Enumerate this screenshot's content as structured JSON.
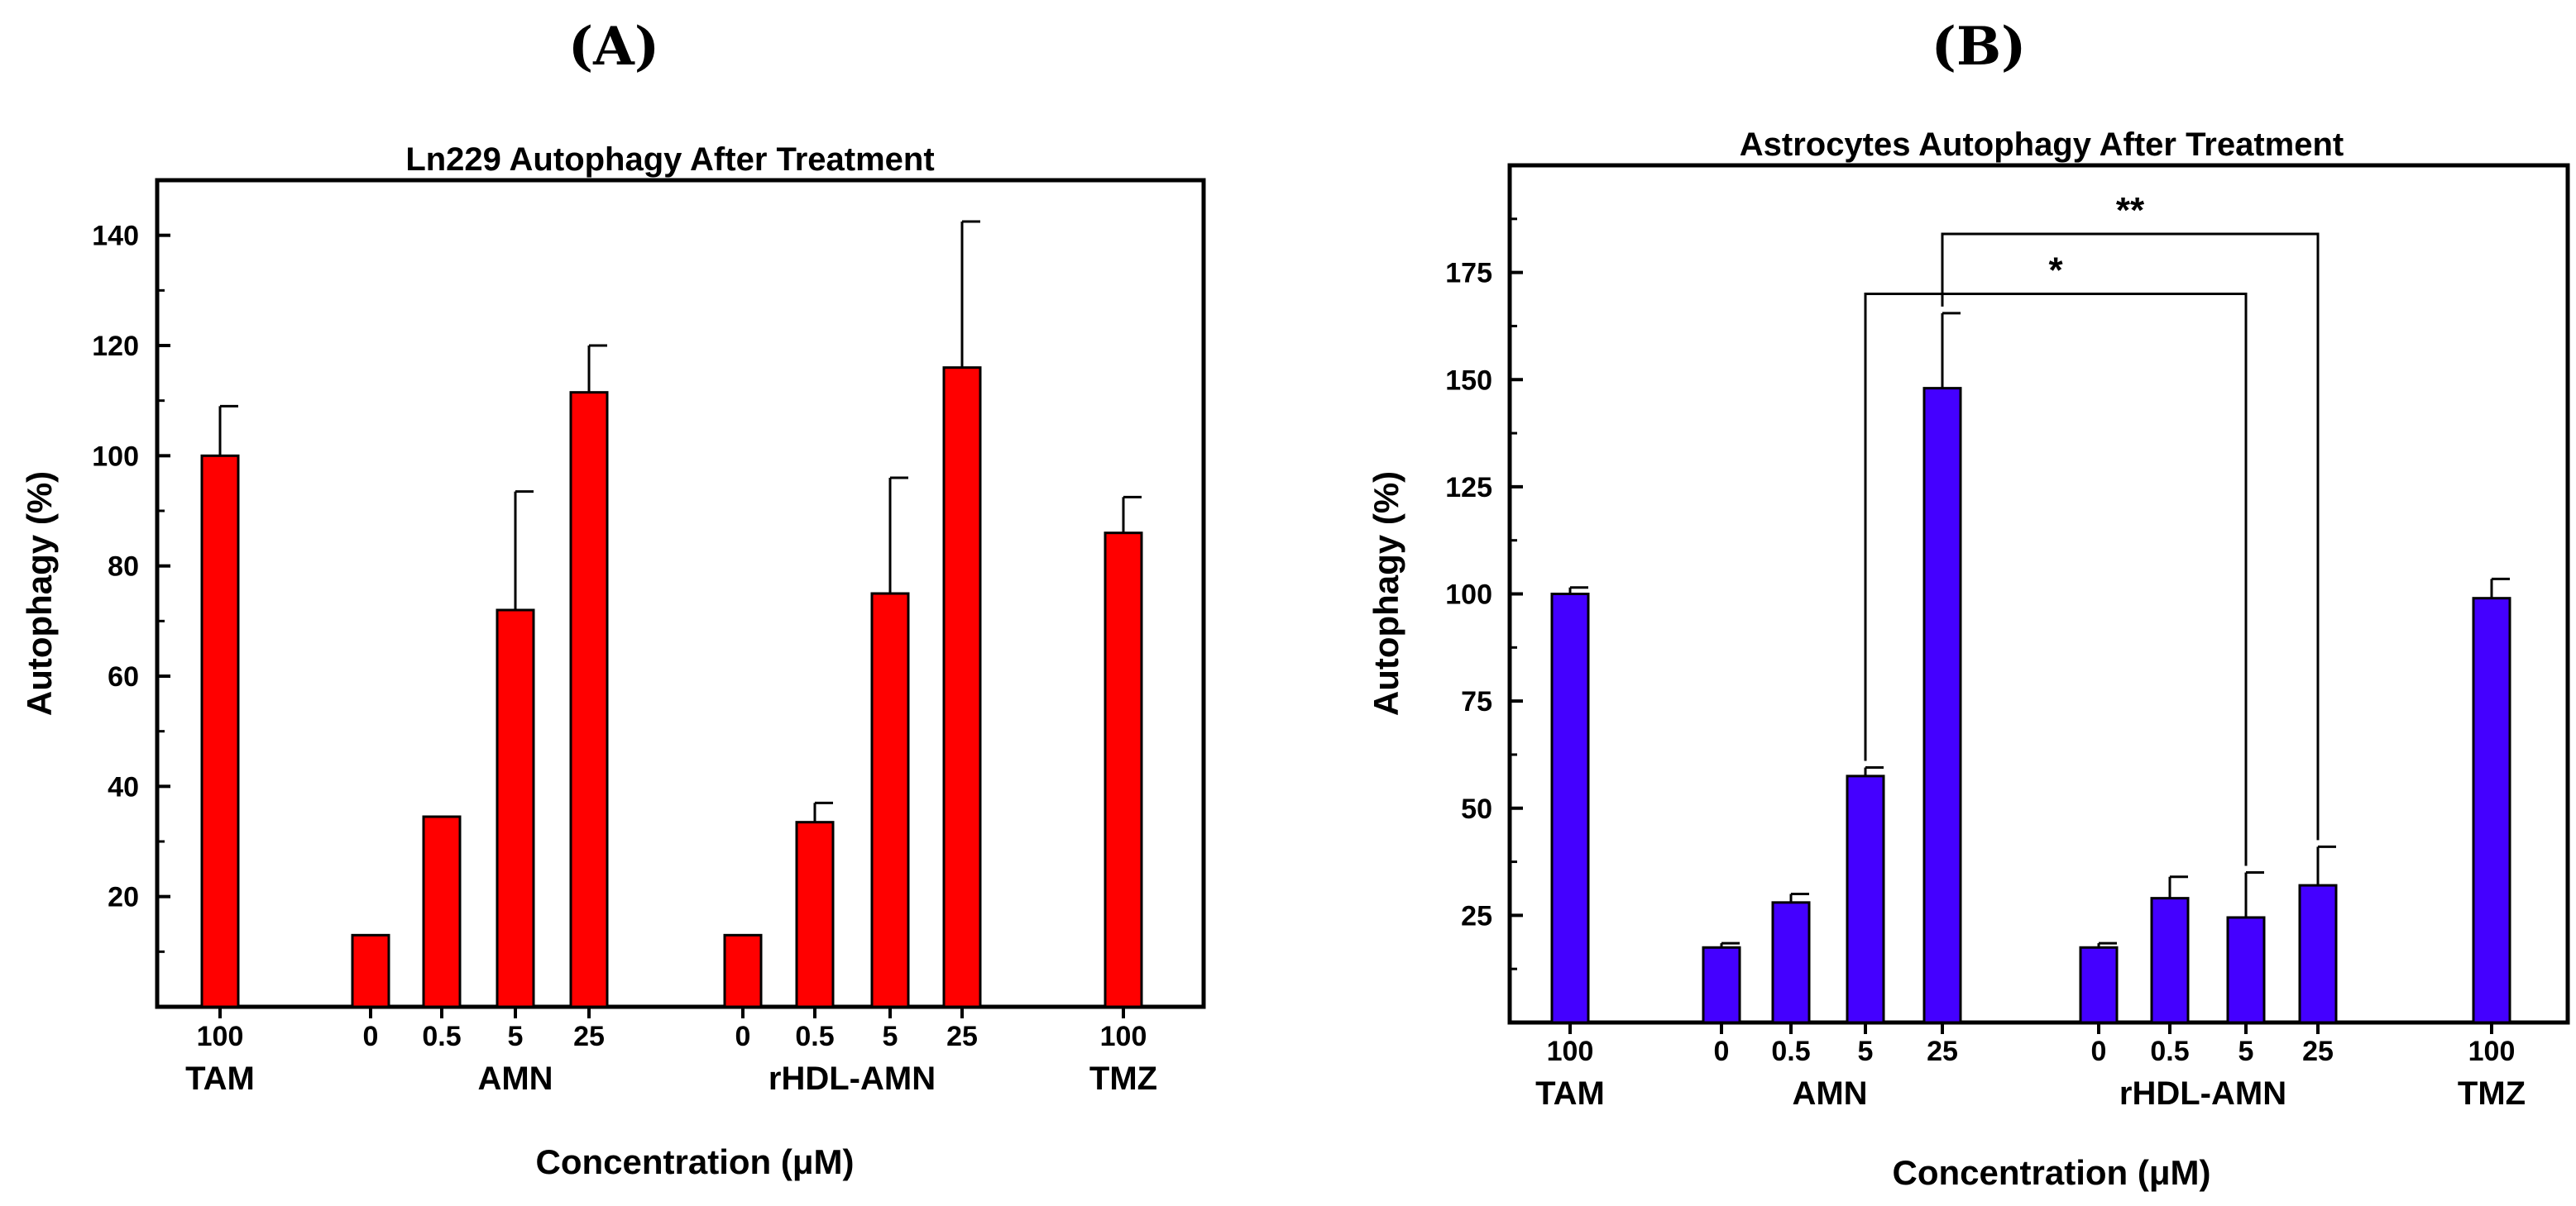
{
  "chart_data": [
    {
      "panel": "(A)",
      "type": "bar",
      "title": "Ln229 Autophagy After Treatment",
      "xlabel": "Concentration (μM)",
      "ylabel": "Autophagy (%)",
      "ylim": [
        0,
        150
      ],
      "yticks": [
        20,
        40,
        60,
        80,
        100,
        120,
        140
      ],
      "grid": false,
      "legend": "none",
      "bar_color": "#ff0000",
      "bars": [
        {
          "group": "TAM",
          "label": "100",
          "value": 100,
          "error": 9
        },
        {
          "group": "AMN",
          "label": "0",
          "value": 13,
          "error": 0
        },
        {
          "group": "AMN",
          "label": "0.5",
          "value": 34.5,
          "error": 0
        },
        {
          "group": "AMN",
          "label": "5",
          "value": 72,
          "error": 21.5
        },
        {
          "group": "AMN",
          "label": "25",
          "value": 111.5,
          "error": 8.5
        },
        {
          "group": "rHDL-AMN",
          "label": "0",
          "value": 13,
          "error": 0
        },
        {
          "group": "rHDL-AMN",
          "label": "0.5",
          "value": 33.5,
          "error": 3.5
        },
        {
          "group": "rHDL-AMN",
          "label": "5",
          "value": 75,
          "error": 21
        },
        {
          "group": "rHDL-AMN",
          "label": "25",
          "value": 116,
          "error": 26.5
        },
        {
          "group": "TMZ",
          "label": "100",
          "value": 86,
          "error": 6.5
        }
      ],
      "groups": [
        "TAM",
        "AMN",
        "rHDL-AMN",
        "TMZ"
      ],
      "significance": []
    },
    {
      "panel": "(B)",
      "type": "bar",
      "title": "Astrocytes Autophagy After Treatment",
      "xlabel": "Concentration (μM)",
      "ylabel": "Autophagy (%)",
      "ylim": [
        0,
        200
      ],
      "yticks": [
        25,
        50,
        75,
        100,
        125,
        150,
        175
      ],
      "grid": false,
      "legend": "none",
      "bar_color": "#4400ff",
      "bars": [
        {
          "group": "TAM",
          "label": "100",
          "value": 100,
          "error": 1.5
        },
        {
          "group": "AMN",
          "label": "0",
          "value": 17.5,
          "error": 1
        },
        {
          "group": "AMN",
          "label": "0.5",
          "value": 28,
          "error": 2
        },
        {
          "group": "AMN",
          "label": "5",
          "value": 57.5,
          "error": 2
        },
        {
          "group": "AMN",
          "label": "25",
          "value": 148,
          "error": 17.5
        },
        {
          "group": "rHDL-AMN",
          "label": "0",
          "value": 17.5,
          "error": 1
        },
        {
          "group": "rHDL-AMN",
          "label": "0.5",
          "value": 29,
          "error": 5
        },
        {
          "group": "rHDL-AMN",
          "label": "5",
          "value": 24.5,
          "error": 10.5
        },
        {
          "group": "rHDL-AMN",
          "label": "25",
          "value": 32,
          "error": 9
        },
        {
          "group": "TMZ",
          "label": "100",
          "value": 99,
          "error": 4.5
        }
      ],
      "groups": [
        "TAM",
        "AMN",
        "rHDL-AMN",
        "TMZ"
      ],
      "significance": [
        {
          "from": 3,
          "to": 7,
          "label": "*",
          "level": 170
        },
        {
          "from": 4,
          "to": 8,
          "label": "**",
          "level": 184
        }
      ]
    }
  ]
}
